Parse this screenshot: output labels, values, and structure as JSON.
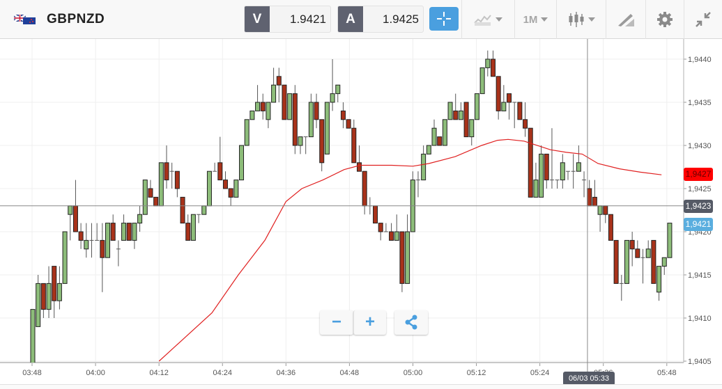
{
  "header": {
    "symbol": "GBPNZD",
    "flag_icon": "gb-nz-flag-icon",
    "bid_label": "V",
    "bid_value": "1.9421",
    "ask_label": "A",
    "ask_value": "1.9425",
    "crosshair_icon": "crosshair-icon",
    "chart_type_icon": "line-chart-icon",
    "timeframe": "1M",
    "candle_icon": "candlestick-icon",
    "draw_icon": "drawing-tool-icon",
    "settings_icon": "gear-icon",
    "minimize_icon": "compress-icon"
  },
  "colors": {
    "accent": "#4a9fdf",
    "bull": "#8dbd7a",
    "bear": "#a8321a",
    "ma": "#e02020",
    "bid_label": "#ff0000",
    "cursor_label": "#555a66",
    "last_label": "#5aaedf"
  },
  "controls": {
    "zoom_out": "−",
    "zoom_in": "+",
    "share_icon": "share-icon"
  },
  "crosshair": {
    "time_label": "06/03 05:33",
    "price_label": "1,9423",
    "price": 1.9423,
    "time": "05:33"
  },
  "price_labels": {
    "ma": "1,9427",
    "last": "1,9421"
  },
  "chart_data": {
    "type": "candlestick",
    "interval": "1M",
    "first_time": "03:48",
    "ylim": [
      1.9405,
      1.94405
    ],
    "yticks": [
      1.944,
      1.9435,
      1.943,
      1.9425,
      1.942,
      1.9415,
      1.941,
      1.9405
    ],
    "ytick_labels": [
      "1,9440",
      "1,9435",
      "1,9430",
      "1,9425",
      "1,9420",
      "1,9415",
      "1,9410",
      "1,9405"
    ],
    "xtick_labels": [
      "03:48",
      "04:00",
      "04:12",
      "04:24",
      "04:36",
      "04:48",
      "05:00",
      "05:12",
      "05:24",
      "05:36",
      "05:48"
    ],
    "grid": true,
    "ohlc_fields": [
      "open",
      "high",
      "low",
      "close"
    ],
    "candles": [
      [
        1.9402,
        1.9411,
        1.9401,
        1.9411
      ],
      [
        1.9409,
        1.9415,
        1.9409,
        1.9414
      ],
      [
        1.9414,
        1.9414,
        1.941,
        1.9411
      ],
      [
        1.9411,
        1.9416,
        1.941,
        1.9414
      ],
      [
        1.9416,
        1.9416,
        1.941,
        1.9412
      ],
      [
        1.9412,
        1.9416,
        1.9411,
        1.9414
      ],
      [
        1.9414,
        1.942,
        1.9414,
        1.942
      ],
      [
        1.9422,
        1.9423,
        1.9419,
        1.9423
      ],
      [
        1.9423,
        1.9426,
        1.942,
        1.942
      ],
      [
        1.942,
        1.9421,
        1.9418,
        1.9419
      ],
      [
        1.9418,
        1.9421,
        1.9417,
        1.9419
      ],
      [
        1.9419,
        1.9421,
        1.9417,
        1.9419
      ],
      [
        1.9419,
        1.9421,
        1.9419,
        1.9419
      ],
      [
        1.9419,
        1.9421,
        1.9413,
        1.9417
      ],
      [
        1.9417,
        1.9421,
        1.9417,
        1.9421
      ],
      [
        1.9421,
        1.9422,
        1.9419,
        1.9419
      ],
      [
        1.9418,
        1.9419,
        1.9416,
        1.9418
      ],
      [
        1.9419,
        1.9422,
        1.9419,
        1.9421
      ],
      [
        1.9421,
        1.9421,
        1.9419,
        1.9419
      ],
      [
        1.9419,
        1.9421,
        1.9418,
        1.9421
      ],
      [
        1.9421,
        1.9423,
        1.942,
        1.9422
      ],
      [
        1.9422,
        1.9426,
        1.9422,
        1.9426
      ],
      [
        1.9425,
        1.9426,
        1.9424,
        1.9424
      ],
      [
        1.9424,
        1.9424,
        1.9423,
        1.9423
      ],
      [
        1.9423,
        1.9428,
        1.9423,
        1.9428
      ],
      [
        1.9428,
        1.943,
        1.9425,
        1.9426
      ],
      [
        1.9427,
        1.9428,
        1.9425,
        1.9427
      ],
      [
        1.9427,
        1.9427,
        1.9424,
        1.9425
      ],
      [
        1.9424,
        1.9424,
        1.9421,
        1.9421
      ],
      [
        1.9421,
        1.9422,
        1.9419,
        1.9419
      ],
      [
        1.9419,
        1.9422,
        1.9419,
        1.9422
      ],
      [
        1.9422,
        1.9422,
        1.9421,
        1.9422
      ],
      [
        1.9422,
        1.9423,
        1.9422,
        1.9423
      ],
      [
        1.9423,
        1.9427,
        1.9423,
        1.9427
      ],
      [
        1.9427,
        1.9428,
        1.9427,
        1.9427
      ],
      [
        1.9428,
        1.9431,
        1.9426,
        1.9426
      ],
      [
        1.9426,
        1.9427,
        1.9425,
        1.9425
      ],
      [
        1.9425,
        1.9425,
        1.9423,
        1.9424
      ],
      [
        1.9424,
        1.9426,
        1.9424,
        1.9426
      ],
      [
        1.9426,
        1.943,
        1.9426,
        1.943
      ],
      [
        1.943,
        1.9433,
        1.943,
        1.9433
      ],
      [
        1.9433,
        1.9434,
        1.9433,
        1.9434
      ],
      [
        1.9434,
        1.9437,
        1.9434,
        1.9435
      ],
      [
        1.9435,
        1.9436,
        1.9433,
        1.9434
      ],
      [
        1.9433,
        1.9435,
        1.9432,
        1.9435
      ],
      [
        1.9435,
        1.9439,
        1.9435,
        1.9437
      ],
      [
        1.9438,
        1.9439,
        1.9435,
        1.9437
      ],
      [
        1.9437,
        1.9437,
        1.9433,
        1.9433
      ],
      [
        1.9433,
        1.9436,
        1.9433,
        1.9436
      ],
      [
        1.9436,
        1.9437,
        1.9429,
        1.943
      ],
      [
        1.943,
        1.9431,
        1.9429,
        1.9431
      ],
      [
        1.9431,
        1.9431,
        1.9429,
        1.9431
      ],
      [
        1.9431,
        1.9436,
        1.9431,
        1.9435
      ],
      [
        1.9435,
        1.9436,
        1.9432,
        1.9433
      ],
      [
        1.9433,
        1.9433,
        1.9427,
        1.9428
      ],
      [
        1.9429,
        1.9435,
        1.9429,
        1.9435
      ],
      [
        1.9435,
        1.944,
        1.9434,
        1.9436
      ],
      [
        1.9436,
        1.9437,
        1.9435,
        1.9437
      ],
      [
        1.9434,
        1.9435,
        1.9432,
        1.9433
      ],
      [
        1.9433,
        1.9433,
        1.9432,
        1.9432
      ],
      [
        1.9432,
        1.9433,
        1.9428,
        1.9428
      ],
      [
        1.9428,
        1.943,
        1.9427,
        1.9427
      ],
      [
        1.9427,
        1.9427,
        1.9422,
        1.9423
      ],
      [
        1.9423,
        1.9424,
        1.9422,
        1.9423
      ],
      [
        1.9423,
        1.9423,
        1.9421,
        1.9421
      ],
      [
        1.9421,
        1.9421,
        1.9419,
        1.942
      ],
      [
        1.942,
        1.9421,
        1.942,
        1.942
      ],
      [
        1.942,
        1.9421,
        1.9419,
        1.9419
      ],
      [
        1.9419,
        1.9422,
        1.9419,
        1.942
      ],
      [
        1.942,
        1.942,
        1.9413,
        1.9414
      ],
      [
        1.9414,
        1.9422,
        1.9414,
        1.942
      ],
      [
        1.942,
        1.9427,
        1.942,
        1.9426
      ],
      [
        1.9426,
        1.9427,
        1.9424,
        1.9426
      ],
      [
        1.9426,
        1.943,
        1.9426,
        1.9429
      ],
      [
        1.9429,
        1.943,
        1.9429,
        1.943
      ],
      [
        1.943,
        1.9433,
        1.943,
        1.9432
      ],
      [
        1.9431,
        1.9431,
        1.943,
        1.943
      ],
      [
        1.943,
        1.9433,
        1.943,
        1.9433
      ],
      [
        1.9433,
        1.9435,
        1.9433,
        1.9435
      ],
      [
        1.9434,
        1.9436,
        1.9433,
        1.9433
      ],
      [
        1.9433,
        1.9435,
        1.9433,
        1.9434
      ],
      [
        1.9435,
        1.9435,
        1.9431,
        1.9431
      ],
      [
        1.9431,
        1.9433,
        1.943,
        1.9433
      ],
      [
        1.9433,
        1.9436,
        1.9433,
        1.9436
      ],
      [
        1.9436,
        1.9439,
        1.9436,
        1.9439
      ],
      [
        1.9439,
        1.9441,
        1.9438,
        1.944
      ],
      [
        1.944,
        1.9441,
        1.9438,
        1.9438
      ],
      [
        1.9438,
        1.9438,
        1.9433,
        1.9434
      ],
      [
        1.9434,
        1.9437,
        1.9434,
        1.9435
      ],
      [
        1.9436,
        1.9436,
        1.9433,
        1.9435
      ],
      [
        1.9435,
        1.9435,
        1.9432,
        1.9435
      ],
      [
        1.9435,
        1.9435,
        1.9433,
        1.9433
      ],
      [
        1.9433,
        1.9435,
        1.9431,
        1.9432
      ],
      [
        1.9432,
        1.9432,
        1.9424,
        1.9424
      ],
      [
        1.9424,
        1.9428,
        1.9424,
        1.9426
      ],
      [
        1.9424,
        1.943,
        1.9424,
        1.9429
      ],
      [
        1.9429,
        1.9429,
        1.9425,
        1.9426
      ],
      [
        1.9426,
        1.9432,
        1.9425,
        1.9426
      ],
      [
        1.9426,
        1.9426,
        1.9425,
        1.9426
      ],
      [
        1.9426,
        1.9429,
        1.9425,
        1.9428
      ],
      [
        1.9427,
        1.9427,
        1.9426,
        1.9427
      ],
      [
        1.9427,
        1.9429,
        1.9425,
        1.9427
      ],
      [
        1.9427,
        1.943,
        1.9427,
        1.9428
      ],
      [
        1.9426,
        1.9427,
        1.9424,
        1.9426
      ],
      [
        1.9425,
        1.9426,
        1.9423,
        1.9423
      ],
      [
        1.9424,
        1.9426,
        1.9423,
        1.9423
      ],
      [
        1.9422,
        1.9423,
        1.942,
        1.9423
      ],
      [
        1.9423,
        1.9423,
        1.9421,
        1.9422
      ],
      [
        1.9422,
        1.9422,
        1.9419,
        1.9419
      ],
      [
        1.9419,
        1.9419,
        1.9414,
        1.9414
      ],
      [
        1.9414,
        1.9415,
        1.9412,
        1.9414
      ],
      [
        1.9414,
        1.9419,
        1.9414,
        1.9419
      ],
      [
        1.9419,
        1.942,
        1.9416,
        1.9418
      ],
      [
        1.9418,
        1.9419,
        1.9417,
        1.9417
      ],
      [
        1.9417,
        1.9418,
        1.9414,
        1.9417
      ],
      [
        1.9417,
        1.9419,
        1.9417,
        1.9418
      ],
      [
        1.9419,
        1.9419,
        1.9414,
        1.9414
      ],
      [
        1.9413,
        1.9416,
        1.9412,
        1.9416
      ],
      [
        1.9416,
        1.9417,
        1.9415,
        1.9417
      ],
      [
        1.9417,
        1.9421,
        1.9417,
        1.9421
      ]
    ],
    "moving_average": [
      [
        "04:12",
        1.9405
      ],
      [
        "04:22",
        1.94106
      ],
      [
        "04:27",
        1.9415
      ],
      [
        "04:32",
        1.9419
      ],
      [
        "04:36",
        1.94235
      ],
      [
        "04:39",
        1.9425
      ],
      [
        "04:43",
        1.9426
      ],
      [
        "04:47",
        1.94272
      ],
      [
        "04:50",
        1.94277
      ],
      [
        "04:56",
        1.94277
      ],
      [
        "05:00",
        1.94276
      ],
      [
        "05:03",
        1.94279
      ],
      [
        "05:08",
        1.94287
      ],
      [
        "05:13",
        1.943
      ],
      [
        "05:16",
        1.94306
      ],
      [
        "05:18",
        1.94307
      ],
      [
        "05:21",
        1.94305
      ],
      [
        "05:24",
        1.94299
      ],
      [
        "05:26",
        1.94295
      ],
      [
        "05:29",
        1.94292
      ],
      [
        "05:32",
        1.9429
      ],
      [
        "05:35",
        1.94279
      ],
      [
        "05:39",
        1.94273
      ],
      [
        "05:43",
        1.94269
      ],
      [
        "05:47",
        1.94266
      ]
    ]
  }
}
